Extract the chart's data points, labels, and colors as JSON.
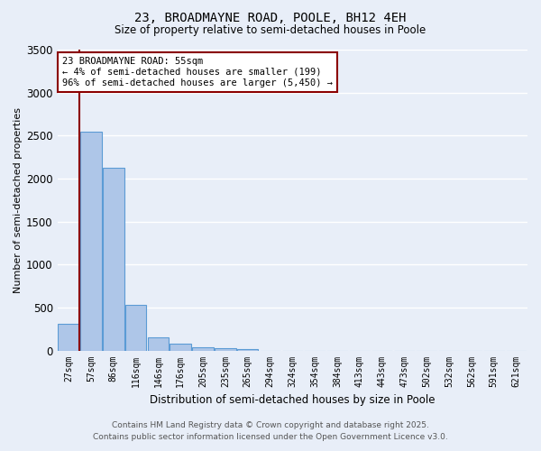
{
  "title_line1": "23, BROADMAYNE ROAD, POOLE, BH12 4EH",
  "title_line2": "Size of property relative to semi-detached houses in Poole",
  "xlabel": "Distribution of semi-detached houses by size in Poole",
  "ylabel": "Number of semi-detached properties",
  "categories": [
    "27sqm",
    "57sqm",
    "86sqm",
    "116sqm",
    "146sqm",
    "176sqm",
    "205sqm",
    "235sqm",
    "265sqm",
    "294sqm",
    "324sqm",
    "354sqm",
    "384sqm",
    "413sqm",
    "443sqm",
    "473sqm",
    "502sqm",
    "532sqm",
    "562sqm",
    "591sqm",
    "621sqm"
  ],
  "values": [
    315,
    2540,
    2130,
    530,
    155,
    75,
    35,
    30,
    20,
    0,
    0,
    0,
    0,
    0,
    0,
    0,
    0,
    0,
    0,
    0,
    0
  ],
  "bar_color": "#aec6e8",
  "bar_edge_color": "#5b9bd5",
  "vline_color": "#8b0000",
  "annotation_text": "23 BROADMAYNE ROAD: 55sqm\n← 4% of semi-detached houses are smaller (199)\n96% of semi-detached houses are larger (5,450) →",
  "annotation_box_color": "#8b0000",
  "ylim": [
    0,
    3500
  ],
  "yticks": [
    0,
    500,
    1000,
    1500,
    2000,
    2500,
    3000,
    3500
  ],
  "background_color": "#e8eef8",
  "grid_color": "#ffffff",
  "footnote_line1": "Contains HM Land Registry data © Crown copyright and database right 2025.",
  "footnote_line2": "Contains public sector information licensed under the Open Government Licence v3.0."
}
